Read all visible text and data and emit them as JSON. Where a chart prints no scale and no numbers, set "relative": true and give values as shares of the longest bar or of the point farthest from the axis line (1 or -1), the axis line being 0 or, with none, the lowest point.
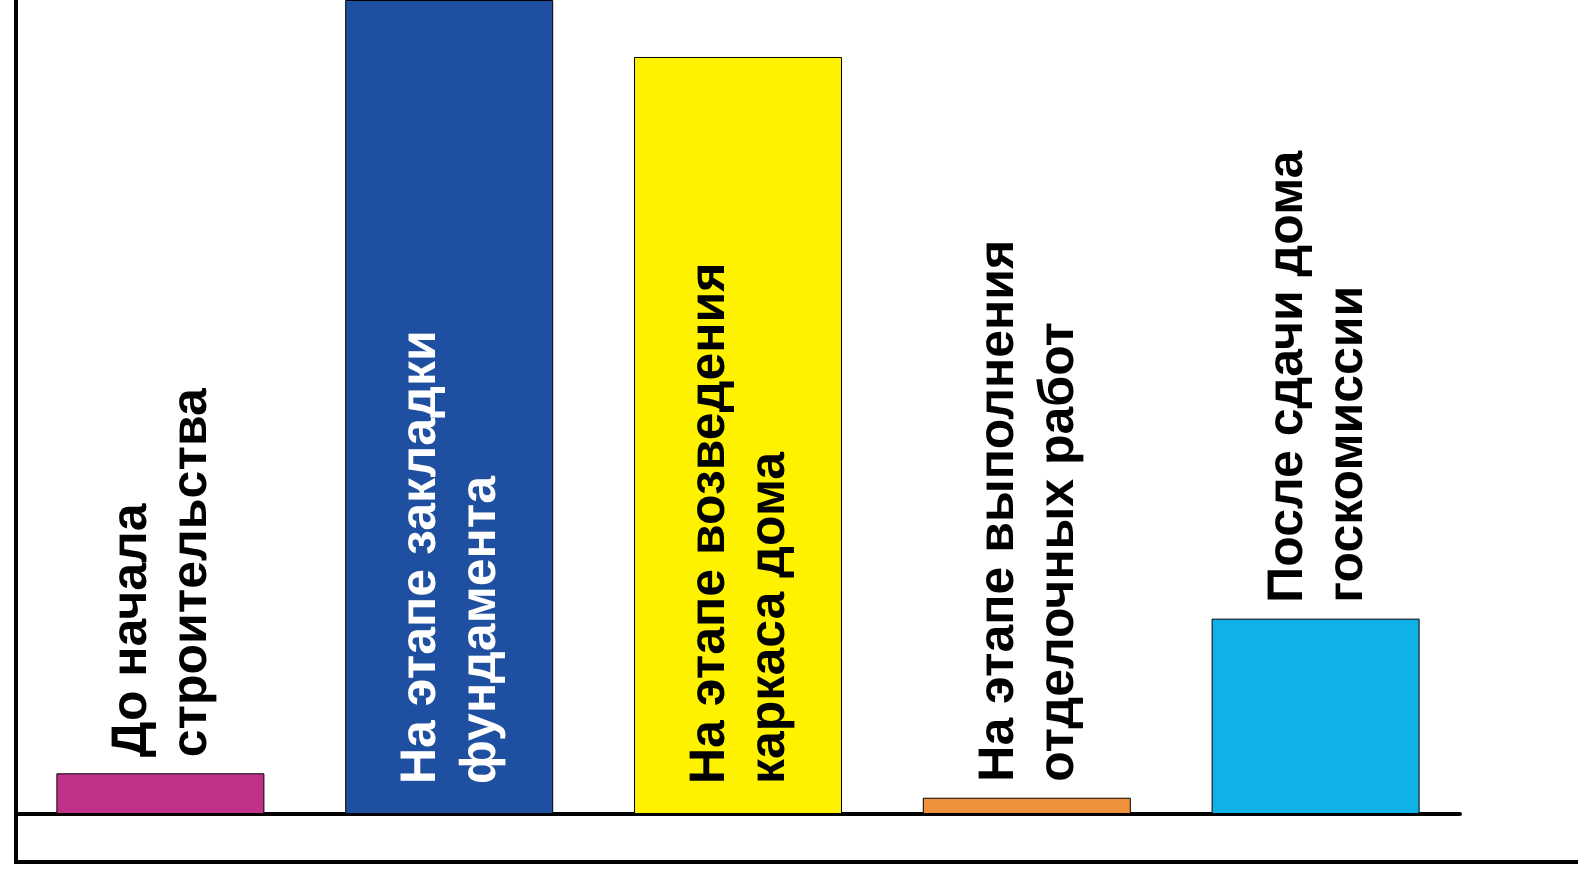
{
  "chart_data": {
    "type": "bar",
    "relative": true,
    "categories": [
      "До начала\nстроительства",
      "На этапе закладки\nфундамента",
      "На этапе возведения\nкаркаса дома",
      "На этапе выполнения\nотделочных работ",
      "После сдачи дома\nгоскомиссии"
    ],
    "values": [
      0.05,
      1,
      0.93,
      0.02,
      0.24
    ],
    "colors": [
      "#c0318a",
      "#1f4fa0",
      "#fff200",
      "#f0913c",
      "#10b0e8"
    ]
  }
}
